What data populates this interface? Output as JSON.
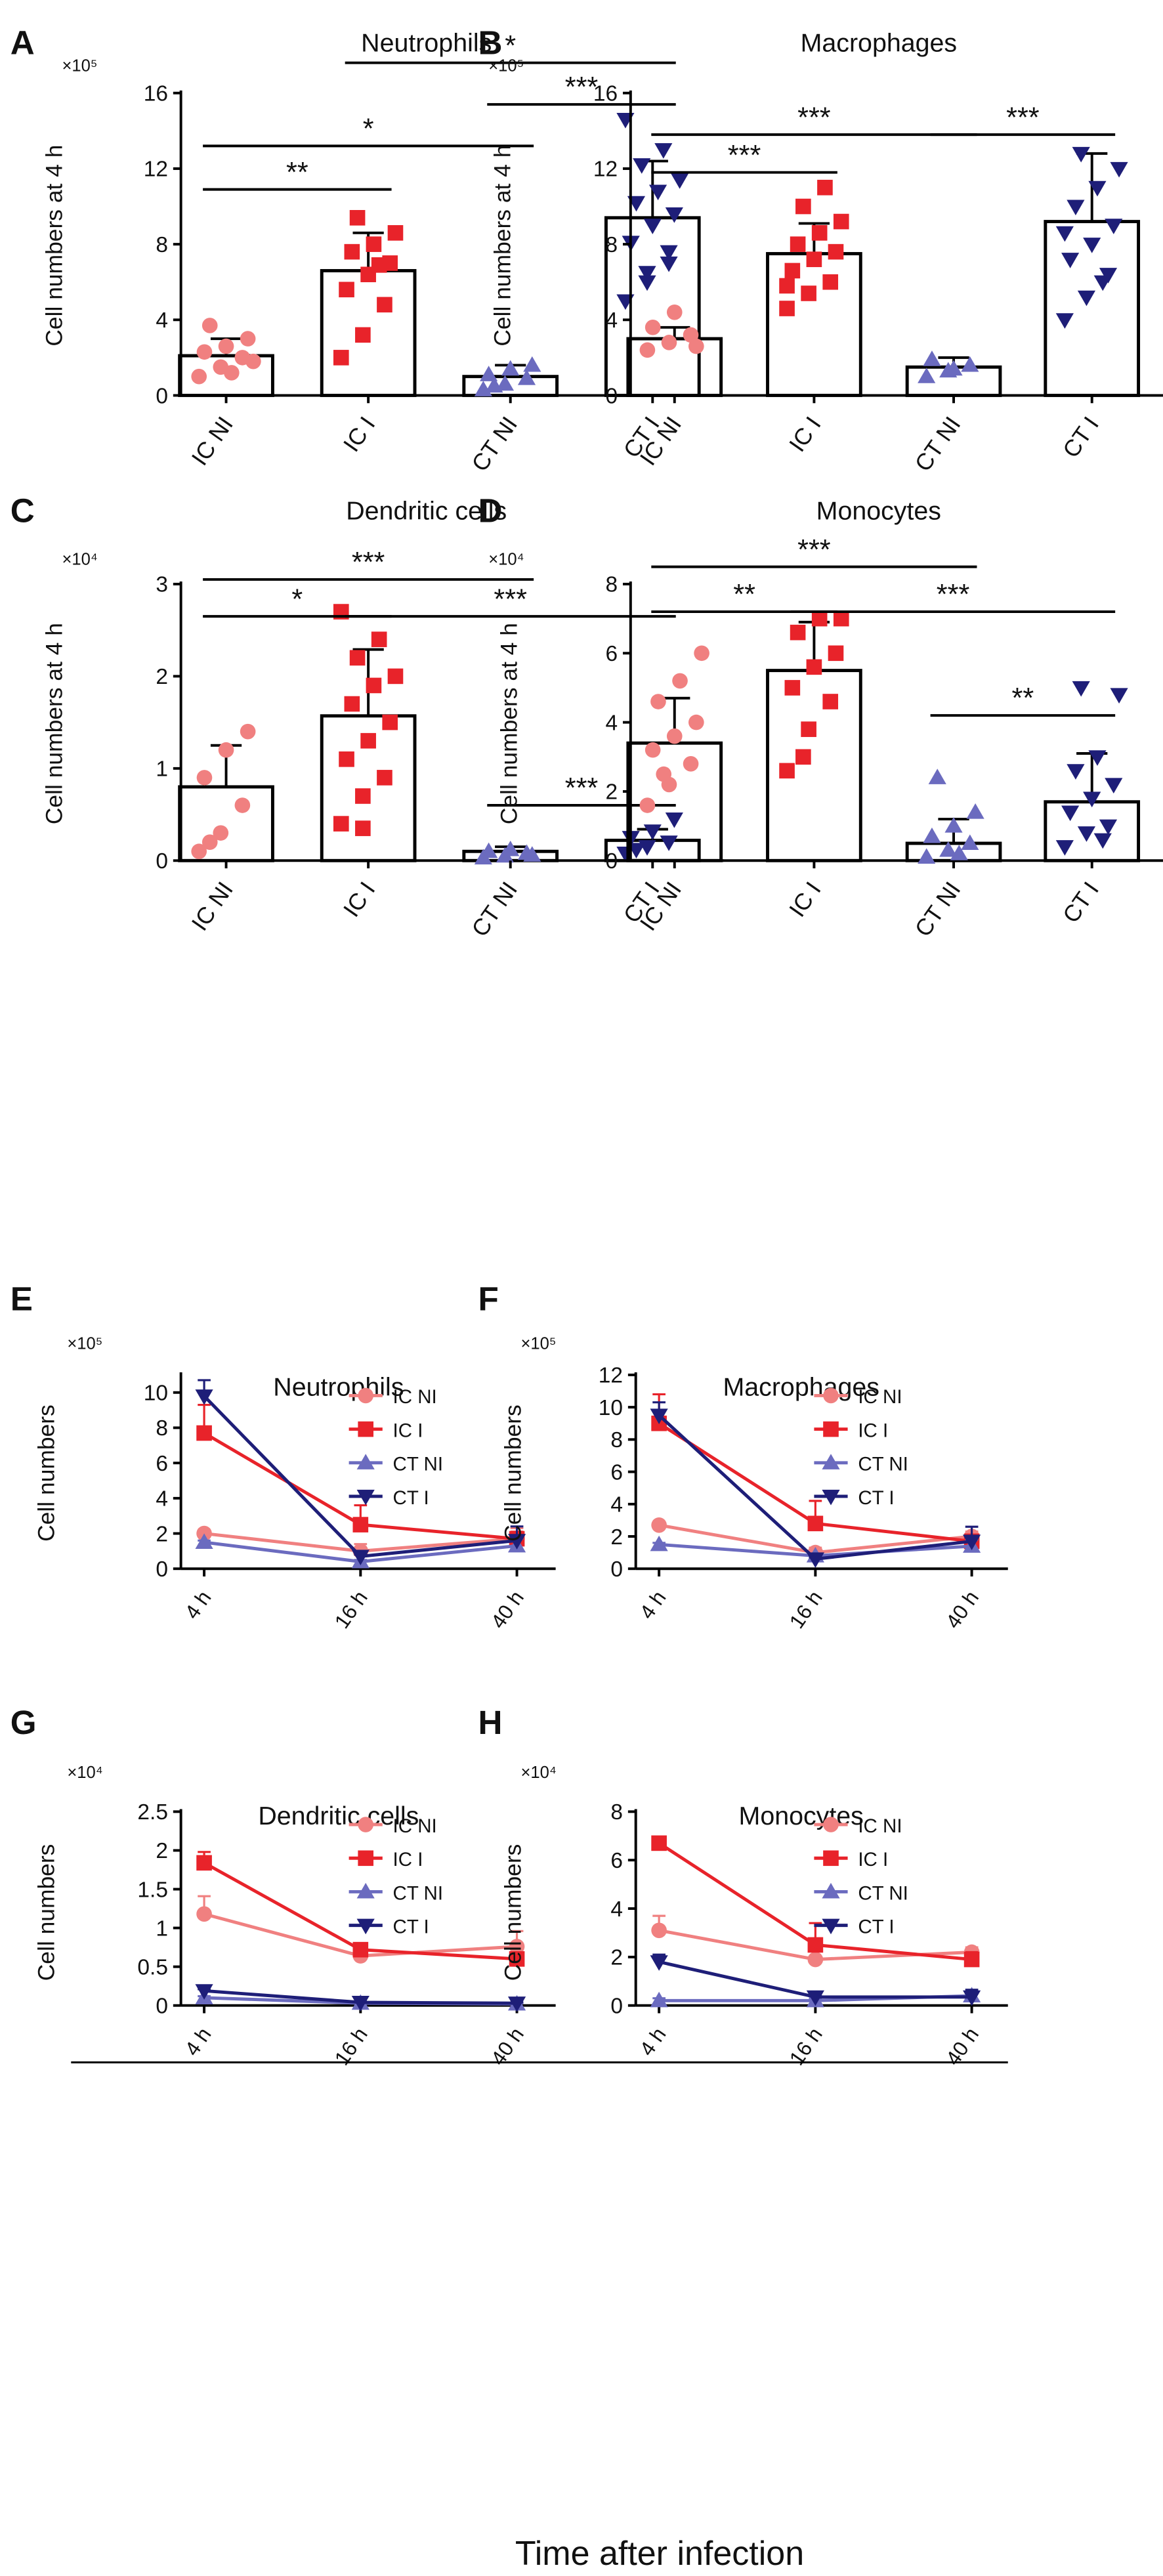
{
  "figure_xlabel": "Time after infection",
  "colors": {
    "ic_ni": "#f08080",
    "ic_i": "#e8232a",
    "ct_ni": "#6b6bbf",
    "ct_i": "#1e1e78",
    "axis": "#000000"
  },
  "chart_data": [
    {
      "panel": "A",
      "type": "bar",
      "title": "Neutrophils",
      "multiplier": "×10⁵",
      "ylabel": "Cell numbers at 4 h",
      "ylim": [
        0,
        16
      ],
      "yticks": [
        "0",
        "4",
        "8",
        "12",
        "16"
      ],
      "categories": [
        "IC NI",
        "IC I",
        "CT NI",
        "CT I"
      ],
      "values": [
        2.1,
        6.6,
        1.0,
        9.4
      ],
      "errors": [
        0.9,
        2.0,
        0.6,
        3.0
      ],
      "points": [
        [
          1.0,
          1.5,
          2.0,
          2.3,
          2.6,
          3.0,
          3.7,
          1.2,
          1.8
        ],
        [
          2.0,
          3.2,
          4.8,
          5.6,
          6.4,
          7.0,
          7.6,
          8.0,
          8.6,
          9.4,
          6.9
        ],
        [
          0.3,
          0.6,
          0.9,
          1.1,
          1.4,
          1.6,
          0.5
        ],
        [
          5.0,
          6.0,
          7.0,
          8.1,
          9.0,
          9.6,
          10.2,
          10.8,
          11.4,
          12.2,
          13.0,
          14.6,
          6.5,
          7.6
        ]
      ],
      "significance": [
        {
          "from": 0,
          "to": 1,
          "label": "**",
          "y": 10.9
        },
        {
          "from": 0,
          "to": 2,
          "label": "*",
          "y": 13.2
        },
        {
          "from": 2,
          "to": 3,
          "label": "***",
          "y": 15.4
        },
        {
          "from": 1,
          "to": 3,
          "label": "*",
          "y": 17.6
        }
      ]
    },
    {
      "panel": "B",
      "type": "bar",
      "title": "Macrophages",
      "multiplier": "×10⁵",
      "ylabel": "Cell numbers at 4 h",
      "ylim": [
        0,
        16
      ],
      "yticks": [
        "0",
        "4",
        "8",
        "12",
        "16"
      ],
      "categories": [
        "IC NI",
        "IC I",
        "CT NI",
        "CT I"
      ],
      "values": [
        3.0,
        7.5,
        1.5,
        9.2
      ],
      "errors": [
        0.6,
        1.6,
        0.5,
        3.6
      ],
      "points": [
        [
          2.4,
          2.8,
          3.2,
          3.6,
          4.4,
          2.6
        ],
        [
          4.6,
          5.4,
          6.0,
          6.6,
          7.2,
          7.6,
          8.0,
          8.6,
          9.2,
          10.0,
          11.0,
          5.8
        ],
        [
          1.0,
          1.3,
          1.6,
          1.9,
          1.4
        ],
        [
          4.0,
          5.2,
          6.4,
          7.2,
          8.0,
          9.0,
          10.0,
          11.0,
          12.0,
          12.8,
          6.0,
          8.6
        ]
      ],
      "significance": [
        {
          "from": 0,
          "to": 1,
          "label": "***",
          "y": 11.8
        },
        {
          "from": 0,
          "to": 2,
          "label": "***",
          "y": 13.8
        },
        {
          "from": 2,
          "to": 3,
          "label": "***",
          "y": 13.8
        }
      ]
    },
    {
      "panel": "C",
      "type": "bar",
      "title": "Dendritic cells",
      "multiplier": "×10⁴",
      "ylabel": "Cell numbers at 4 h",
      "ylim": [
        0,
        3
      ],
      "yticks": [
        "0",
        "1",
        "2",
        "3"
      ],
      "categories": [
        "IC NI",
        "IC I",
        "CT NI",
        "CT I"
      ],
      "values": [
        0.8,
        1.57,
        0.1,
        0.22
      ],
      "errors": [
        0.45,
        0.72,
        0.05,
        0.12
      ],
      "points": [
        [
          0.1,
          0.3,
          0.6,
          0.9,
          1.2,
          1.4,
          0.2
        ],
        [
          0.4,
          0.7,
          0.9,
          1.1,
          1.3,
          1.5,
          1.7,
          1.9,
          2.0,
          2.2,
          2.4,
          2.7,
          0.35
        ],
        [
          0.03,
          0.05,
          0.08,
          0.1,
          0.12,
          0.06
        ],
        [
          0.08,
          0.15,
          0.2,
          0.25,
          0.32,
          0.45,
          0.12
        ]
      ],
      "significance": [
        {
          "from": 0,
          "to": 1,
          "label": "*",
          "y": 2.65
        },
        {
          "from": 0,
          "to": 2,
          "label": "***",
          "y": 3.05
        },
        {
          "from": 1,
          "to": 3,
          "label": "***",
          "y": 2.65
        },
        {
          "from": 2,
          "to": 3,
          "label": "***",
          "y": 0.6
        }
      ]
    },
    {
      "panel": "D",
      "type": "bar",
      "title": "Monocytes",
      "multiplier": "×10⁴",
      "ylabel": "Cell numbers at 4 h",
      "ylim": [
        0,
        8
      ],
      "yticks": [
        "0",
        "2",
        "4",
        "6",
        "8"
      ],
      "categories": [
        "IC NI",
        "IC I",
        "CT NI",
        "CT I"
      ],
      "values": [
        3.4,
        5.5,
        0.5,
        1.7
      ],
      "errors": [
        1.3,
        1.4,
        0.7,
        1.4
      ],
      "points": [
        [
          1.6,
          2.2,
          2.8,
          3.2,
          3.6,
          4.0,
          4.6,
          5.2,
          6.0,
          2.5
        ],
        [
          2.6,
          3.8,
          4.6,
          5.0,
          5.6,
          6.0,
          6.6,
          7.0,
          7.0,
          3.0
        ],
        [
          0.1,
          0.3,
          0.5,
          0.7,
          1.0,
          1.4,
          2.4,
          0.2
        ],
        [
          0.4,
          0.8,
          1.0,
          1.4,
          1.8,
          2.2,
          2.6,
          3.0,
          4.8,
          5.0,
          0.6
        ]
      ],
      "significance": [
        {
          "from": 0,
          "to": 1,
          "label": "**",
          "y": 7.2
        },
        {
          "from": 0,
          "to": 2,
          "label": "***",
          "y": 8.5
        },
        {
          "from": 1,
          "to": 3,
          "label": "***",
          "y": 7.2
        },
        {
          "from": 2,
          "to": 3,
          "label": "**",
          "y": 4.2
        }
      ]
    },
    {
      "panel": "E",
      "type": "line",
      "title": "Neutrophils",
      "multiplier": "×10⁵",
      "ylabel": "Cell numbers",
      "ylim": [
        0,
        11
      ],
      "yticks": [
        "0",
        "2",
        "4",
        "6",
        "8",
        "10"
      ],
      "ytick_values": [
        0,
        2,
        4,
        6,
        8,
        10
      ],
      "x": [
        "4 h",
        "16 h",
        "40 h"
      ],
      "series": [
        {
          "name": "IC NI",
          "values": [
            2.0,
            1.0,
            1.7
          ],
          "errors": [
            0.2,
            0.4,
            0.6
          ]
        },
        {
          "name": "IC I",
          "values": [
            7.7,
            2.5,
            1.7
          ],
          "errors": [
            1.6,
            1.1,
            0.4
          ]
        },
        {
          "name": "CT NI",
          "values": [
            1.5,
            0.4,
            1.3
          ],
          "errors": [
            0.1,
            0.1,
            0.4
          ]
        },
        {
          "name": "CT I",
          "values": [
            9.8,
            0.7,
            1.6
          ],
          "errors": [
            0.9,
            0.1,
            0.8
          ]
        }
      ]
    },
    {
      "panel": "F",
      "type": "line",
      "title": "Macrophages",
      "multiplier": "×10⁵",
      "ylabel": "Cell numbers",
      "ylim": [
        0,
        12
      ],
      "yticks": [
        "0",
        "2",
        "4",
        "6",
        "8",
        "10",
        "12"
      ],
      "ytick_values": [
        0,
        2,
        4,
        6,
        8,
        10,
        12
      ],
      "x": [
        "4 h",
        "16 h",
        "40 h"
      ],
      "series": [
        {
          "name": "IC NI",
          "values": [
            2.7,
            1.0,
            2.0
          ],
          "errors": [
            0.1,
            0.3,
            0.3
          ]
        },
        {
          "name": "IC I",
          "values": [
            9.0,
            2.8,
            1.7
          ],
          "errors": [
            1.8,
            1.4,
            0.4
          ]
        },
        {
          "name": "CT NI",
          "values": [
            1.5,
            0.8,
            1.4
          ],
          "errors": [
            0.1,
            0.1,
            0.4
          ]
        },
        {
          "name": "CT I",
          "values": [
            9.5,
            0.6,
            1.7
          ],
          "errors": [
            0.8,
            0.1,
            0.9
          ]
        }
      ]
    },
    {
      "panel": "G",
      "type": "line",
      "title": "Dendritic cells",
      "multiplier": "×10⁴",
      "ylabel": "Cell numbers",
      "ylim": [
        0,
        2.5
      ],
      "yticks": [
        "0",
        "0.5",
        "1",
        "1.5",
        "2",
        "2.5"
      ],
      "ytick_values": [
        0,
        0.5,
        1,
        1.5,
        2,
        2.5
      ],
      "x": [
        "4 h",
        "16 h",
        "40 h"
      ],
      "series": [
        {
          "name": "IC NI",
          "values": [
            1.18,
            0.64,
            0.76
          ],
          "errors": [
            0.23,
            0.04,
            0.2
          ]
        },
        {
          "name": "IC I",
          "values": [
            1.84,
            0.72,
            0.6
          ],
          "errors": [
            0.14,
            0.04,
            0.05
          ]
        },
        {
          "name": "CT NI",
          "values": [
            0.1,
            0.03,
            0.02
          ],
          "errors": [
            0.02,
            0.01,
            0.01
          ]
        },
        {
          "name": "CT I",
          "values": [
            0.19,
            0.04,
            0.03
          ],
          "errors": [
            0.02,
            0.01,
            0.01
          ]
        }
      ]
    },
    {
      "panel": "H",
      "type": "line",
      "title": "Monocytes",
      "multiplier": "×10⁴",
      "ylabel": "Cell numbers",
      "ylim": [
        0,
        8
      ],
      "yticks": [
        "0",
        "2",
        "4",
        "6",
        "8"
      ],
      "ytick_values": [
        0,
        2,
        4,
        6,
        8
      ],
      "x": [
        "4 h",
        "16 h",
        "40 h"
      ],
      "series": [
        {
          "name": "IC NI",
          "values": [
            3.1,
            1.9,
            2.2
          ],
          "errors": [
            0.6,
            0.1,
            0.2
          ]
        },
        {
          "name": "IC I",
          "values": [
            6.7,
            2.5,
            1.9
          ],
          "errors": [
            0.1,
            0.9,
            0.3
          ]
        },
        {
          "name": "CT NI",
          "values": [
            0.2,
            0.2,
            0.4
          ],
          "errors": [
            0.1,
            0.1,
            0.2
          ]
        },
        {
          "name": "CT I",
          "values": [
            1.8,
            0.35,
            0.35
          ],
          "errors": [
            0.3,
            0.05,
            0.3
          ]
        }
      ]
    }
  ]
}
